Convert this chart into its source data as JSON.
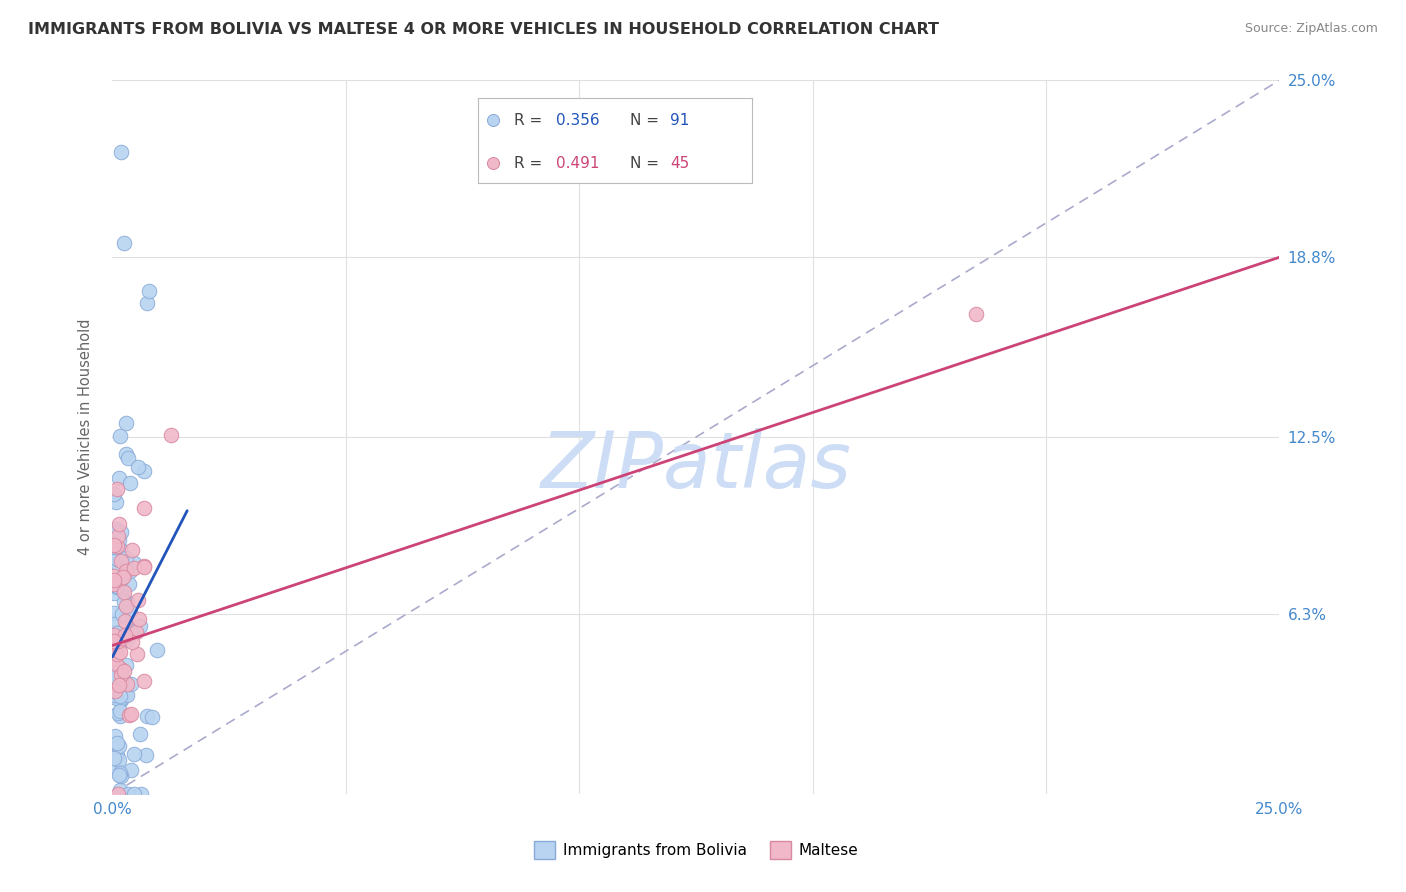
{
  "title": "IMMIGRANTS FROM BOLIVIA VS MALTESE 4 OR MORE VEHICLES IN HOUSEHOLD CORRELATION CHART",
  "source": "Source: ZipAtlas.com",
  "ylabel": "4 or more Vehicles in Household",
  "xlim": [
    0.0,
    0.25
  ],
  "ylim": [
    0.0,
    0.25
  ],
  "grid_color": "#e0e0e0",
  "background_color": "#ffffff",
  "legend_R1": "0.356",
  "legend_N1": "91",
  "legend_R2": "0.491",
  "legend_N2": "45",
  "series1_color": "#b8d4f0",
  "series1_edge": "#88aad8",
  "series2_color": "#f0b8c8",
  "series2_edge": "#d888a0",
  "line1_color": "#2255bb",
  "line2_color": "#cc4477",
  "diag_color": "#aaaacc",
  "watermark_color": "#ccddf5",
  "series1_label": "Immigrants from Bolivia",
  "series2_label": "Maltese",
  "tick_color": "#4488cc",
  "title_color": "#333333",
  "source_color": "#888888"
}
